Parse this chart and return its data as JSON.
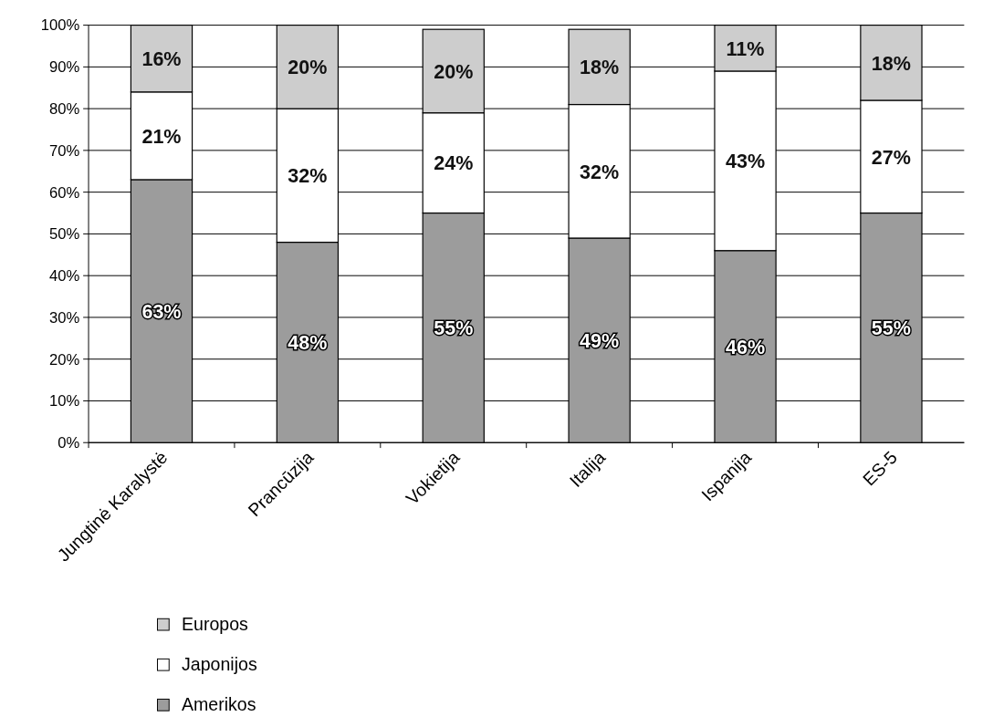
{
  "chart_data": {
    "type": "bar",
    "stacked": true,
    "categories": [
      "Jungtinė Karalystė",
      "Prancūzija",
      "Vokietija",
      "Italija",
      "Ispanija",
      "ES-5"
    ],
    "series": [
      {
        "name": "Amerikos",
        "color": "#9c9c9c",
        "values": [
          63,
          48,
          55,
          49,
          46,
          55
        ],
        "value_labels": [
          "63%",
          "48%",
          "55%",
          "49%",
          "46%",
          "55%"
        ]
      },
      {
        "name": "Japonijos",
        "color": "#ffffff",
        "values": [
          21,
          32,
          24,
          32,
          43,
          27
        ],
        "value_labels": [
          "21%",
          "32%",
          "24%",
          "32%",
          "43%",
          "27%"
        ]
      },
      {
        "name": "Europos",
        "color": "#cdcdcd",
        "values": [
          16,
          20,
          20,
          18,
          11,
          18
        ],
        "value_labels": [
          "16%",
          "20%",
          "20%",
          "18%",
          "11%",
          "18%"
        ]
      }
    ],
    "ylim": [
      0,
      100
    ],
    "yticks": [
      {
        "value": 0,
        "label": "0%"
      },
      {
        "value": 10,
        "label": "10%"
      },
      {
        "value": 20,
        "label": "20%"
      },
      {
        "value": 30,
        "label": "30%"
      },
      {
        "value": 40,
        "label": "40%"
      },
      {
        "value": 50,
        "label": "50%"
      },
      {
        "value": 60,
        "label": "60%"
      },
      {
        "value": 70,
        "label": "70%"
      },
      {
        "value": 80,
        "label": "80%"
      },
      {
        "value": 90,
        "label": "90%"
      },
      {
        "value": 100,
        "label": "100%"
      }
    ],
    "grid": "y",
    "legend": "bottom"
  }
}
